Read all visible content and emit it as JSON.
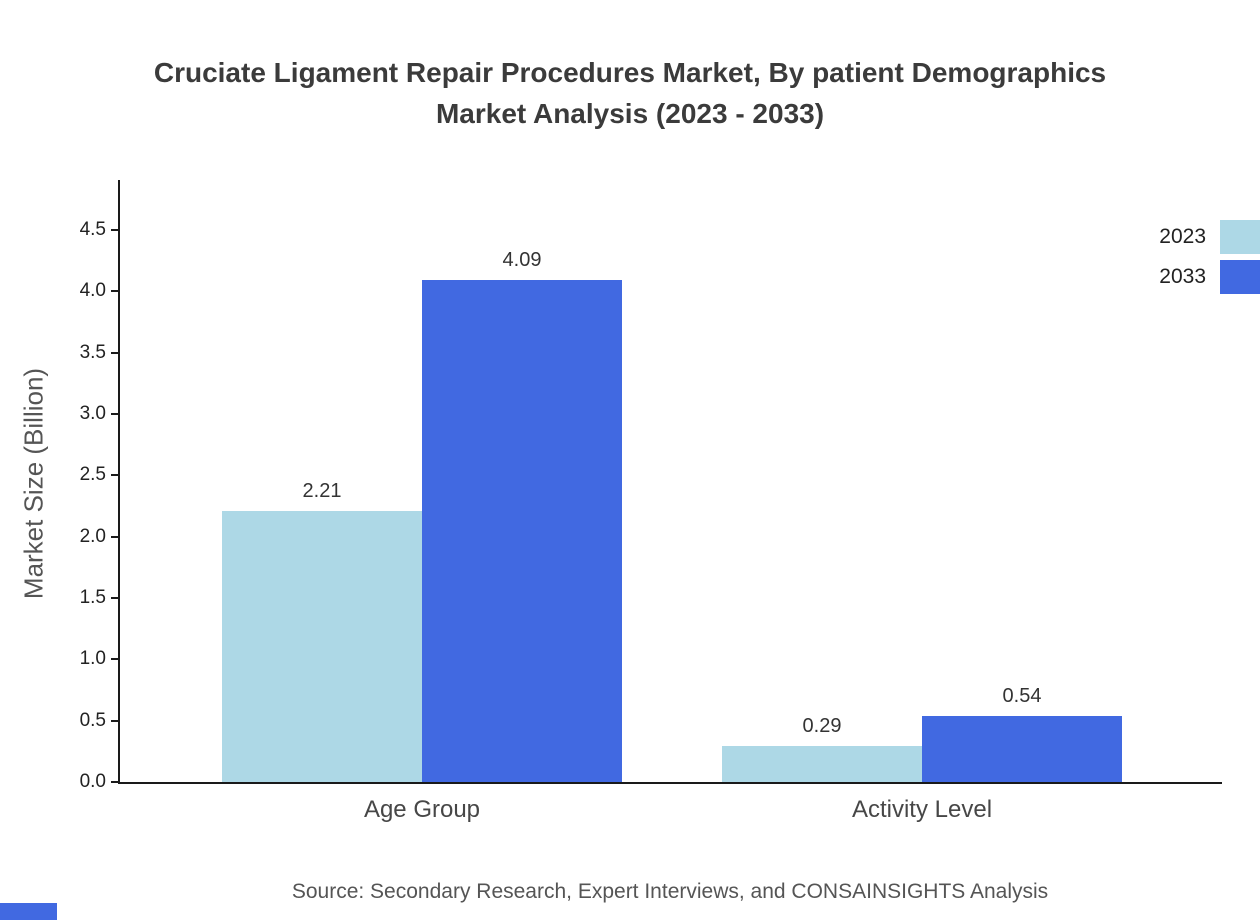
{
  "title": {
    "line1": "Cruciate Ligament Repair Procedures Market, By patient Demographics",
    "line2": "Market Analysis (2023 - 2033)"
  },
  "chart_data": {
    "type": "bar",
    "categories": [
      "Age Group",
      "Activity Level"
    ],
    "series": [
      {
        "name": "2023",
        "color": "#ADD8E6",
        "values": [
          2.21,
          0.29
        ]
      },
      {
        "name": "2033",
        "color": "#4169E1",
        "values": [
          4.09,
          0.54
        ]
      }
    ],
    "title": "Cruciate Ligament Repair Procedures Market, By patient Demographics Market Analysis (2023 - 2033)",
    "xlabel": "",
    "ylabel": "Market Size (Billion)",
    "ylim": [
      0,
      4.5
    ],
    "ytick_step": 0.5,
    "grid": false,
    "legend_position": "top-right"
  },
  "source": "Source: Secondary Research, Expert Interviews, and CONSAINSIGHTS Analysis",
  "footer_accent_color": "#4169E1"
}
